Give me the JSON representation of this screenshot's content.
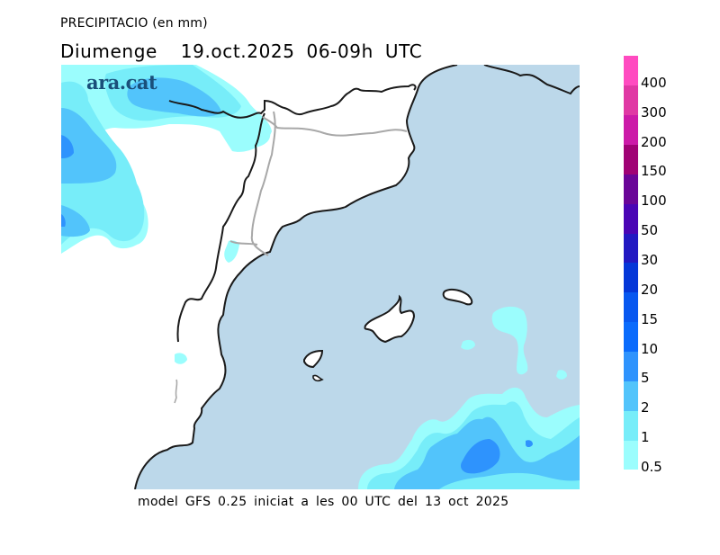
{
  "header": {
    "title": "PRECIPITACIO (en mm)",
    "subtitle": "Diumenge  19.oct.2025 06-09h UTC"
  },
  "logo": {
    "text": "ara.cat",
    "color": "#1a4f7a"
  },
  "footer": {
    "text": "model GFS 0.25 iniciat a les 00 UTC del 13 oct 2025"
  },
  "map": {
    "sea_color": "#bcd8ea",
    "land_color": "#ffffff",
    "coast_color": "#1a1a1a",
    "border_color": "#a8a8a8"
  },
  "legend": {
    "unit": "mm",
    "bands": [
      {
        "label": "0.5",
        "color": "#9bfdfd"
      },
      {
        "label": "1",
        "color": "#77edf9"
      },
      {
        "label": "2",
        "color": "#52c4fb"
      },
      {
        "label": "5",
        "color": "#2e93fd"
      },
      {
        "label": "10",
        "color": "#0a6bfc"
      },
      {
        "label": "15",
        "color": "#0758f0"
      },
      {
        "label": "20",
        "color": "#0437d8"
      },
      {
        "label": "30",
        "color": "#2219c2"
      },
      {
        "label": "50",
        "color": "#4a05b5"
      },
      {
        "label": "100",
        "color": "#6a0598"
      },
      {
        "label": "150",
        "color": "#a00275"
      },
      {
        "label": "200",
        "color": "#cc1aa8"
      },
      {
        "label": "300",
        "color": "#e038a4"
      },
      {
        "label": "400",
        "color": "#ff4bc0"
      }
    ]
  }
}
